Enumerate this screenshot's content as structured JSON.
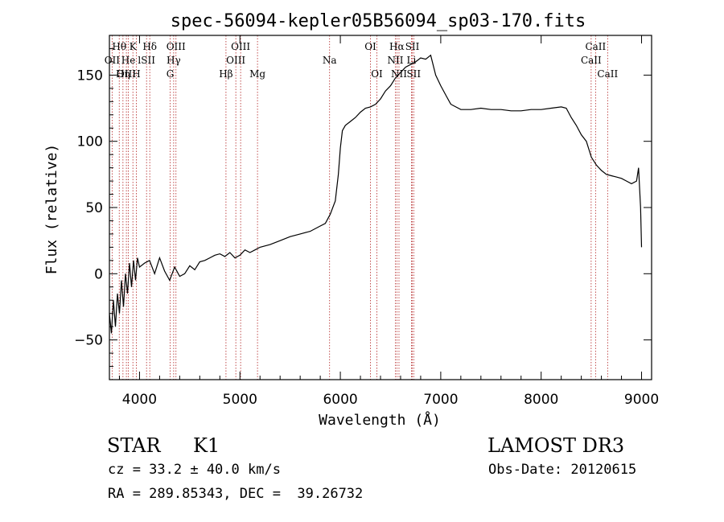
{
  "chart_data": {
    "type": "line",
    "title": "spec-56094-kepler05B56094_sp03-170.fits",
    "xlabel": "Wavelength (Å)",
    "ylabel": "Flux (relative)",
    "xlim": [
      3700,
      9100
    ],
    "ylim": [
      -80,
      180
    ],
    "xticks": [
      4000,
      5000,
      6000,
      7000,
      8000,
      9000
    ],
    "yticks": [
      -50,
      0,
      50,
      100,
      150
    ],
    "colors": {
      "spectrum": "#000000",
      "lines": "#b22222",
      "axes": "#000000"
    },
    "spectrum": {
      "x": [
        3700,
        3720,
        3740,
        3760,
        3780,
        3800,
        3820,
        3840,
        3860,
        3880,
        3900,
        3920,
        3940,
        3960,
        3980,
        4000,
        4050,
        4100,
        4150,
        4200,
        4250,
        4300,
        4350,
        4400,
        4450,
        4500,
        4550,
        4600,
        4650,
        4700,
        4750,
        4800,
        4850,
        4900,
        4950,
        5000,
        5050,
        5100,
        5150,
        5200,
        5300,
        5400,
        5500,
        5600,
        5700,
        5800,
        5850,
        5900,
        5950,
        5980,
        6000,
        6020,
        6050,
        6100,
        6150,
        6200,
        6250,
        6300,
        6350,
        6400,
        6450,
        6500,
        6550,
        6600,
        6650,
        6700,
        6750,
        6800,
        6850,
        6900,
        6950,
        7000,
        7050,
        7100,
        7150,
        7200,
        7300,
        7400,
        7500,
        7600,
        7700,
        7800,
        7900,
        8000,
        8100,
        8200,
        8250,
        8300,
        8350,
        8400,
        8450,
        8500,
        8550,
        8600,
        8650,
        8700,
        8750,
        8800,
        8850,
        8900,
        8950,
        8970,
        8990,
        9000
      ],
      "y": [
        -30,
        -45,
        -20,
        -40,
        -15,
        -30,
        -5,
        -25,
        0,
        -15,
        8,
        -10,
        10,
        -5,
        12,
        5,
        8,
        10,
        0,
        12,
        2,
        -5,
        5,
        -2,
        0,
        6,
        3,
        9,
        10,
        12,
        14,
        15,
        13,
        16,
        12,
        14,
        18,
        16,
        18,
        20,
        22,
        25,
        28,
        30,
        32,
        36,
        38,
        45,
        55,
        75,
        95,
        108,
        112,
        115,
        118,
        122,
        125,
        126,
        128,
        132,
        138,
        142,
        148,
        152,
        156,
        158,
        160,
        163,
        162,
        165,
        150,
        142,
        135,
        128,
        126,
        124,
        124,
        125,
        124,
        124,
        123,
        123,
        124,
        124,
        125,
        126,
        125,
        118,
        112,
        105,
        100,
        88,
        82,
        78,
        75,
        74,
        73,
        72,
        70,
        68,
        70,
        80,
        50,
        20
      ]
    },
    "lines": [
      {
        "label": "Hθ",
        "x": 3798,
        "row": 0
      },
      {
        "label": "K",
        "x": 3934,
        "row": 0
      },
      {
        "label": "Hδ",
        "x": 4102,
        "row": 0
      },
      {
        "label": "OIII",
        "x": 4363,
        "row": 0
      },
      {
        "label": "OIII",
        "x": 5007,
        "row": 0
      },
      {
        "label": "OI",
        "x": 6300,
        "row": 0
      },
      {
        "label": "Hα",
        "x": 6563,
        "row": 0
      },
      {
        "label": "SII",
        "x": 6717,
        "row": 0
      },
      {
        "label": "CaII",
        "x": 8542,
        "row": 0
      },
      {
        "label": "OII",
        "x": 3727,
        "row": 1
      },
      {
        "label": "He",
        "x": 3889,
        "row": 1
      },
      {
        "label": "lSII",
        "x": 4070,
        "row": 1
      },
      {
        "label": "Hγ",
        "x": 4340,
        "row": 1
      },
      {
        "label": "OIII",
        "x": 4959,
        "row": 1
      },
      {
        "label": "Na",
        "x": 5893,
        "row": 1
      },
      {
        "label": "NII",
        "x": 6548,
        "row": 1
      },
      {
        "label": "Li",
        "x": 6708,
        "row": 1
      },
      {
        "label": "CaII",
        "x": 8498,
        "row": 1
      },
      {
        "label": "OIII",
        "x": 3869,
        "row": 2
      },
      {
        "label": "Hη",
        "x": 3835,
        "row": 2
      },
      {
        "label": "H",
        "x": 3968,
        "row": 2
      },
      {
        "label": "G",
        "x": 4305,
        "row": 2
      },
      {
        "label": "Hβ",
        "x": 4861,
        "row": 2
      },
      {
        "label": "Mg",
        "x": 5175,
        "row": 2
      },
      {
        "label": "OI",
        "x": 6364,
        "row": 2
      },
      {
        "label": "NII",
        "x": 6584,
        "row": 2
      },
      {
        "label": "SII",
        "x": 6731,
        "row": 2
      },
      {
        "label": "CaII",
        "x": 8662,
        "row": 2
      }
    ]
  },
  "info": {
    "object_class": "STAR",
    "subclass": "K1",
    "survey": "LAMOST DR3",
    "redshift": "cz = 33.2 ± 40.0 km/s",
    "obs_date": "Obs-Date: 20120615",
    "coords": "RA = 289.85343, DEC =  39.26732"
  }
}
